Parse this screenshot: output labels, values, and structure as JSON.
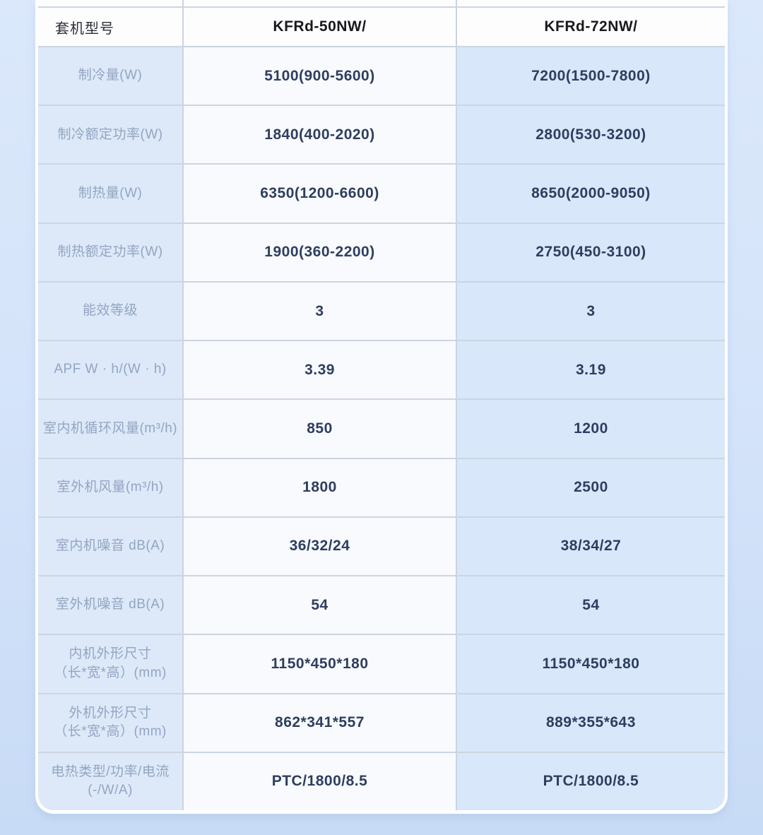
{
  "table": {
    "header": {
      "label": "套机型号",
      "models": [
        "KFRd-50NW/",
        "KFRd-72NW/"
      ]
    },
    "rows": [
      {
        "label": "制冷量(W)",
        "label2": "",
        "values": [
          "5100(900-5600)",
          "7200(1500-7800)"
        ]
      },
      {
        "label": "制冷额定功率(W)",
        "label2": "",
        "values": [
          "1840(400-2020)",
          "2800(530-3200)"
        ]
      },
      {
        "label": "制热量(W)",
        "label2": "",
        "values": [
          "6350(1200-6600)",
          "8650(2000-9050)"
        ]
      },
      {
        "label": "制热额定功率(W)",
        "label2": "",
        "values": [
          "1900(360-2200)",
          "2750(450-3100)"
        ]
      },
      {
        "label": "能效等级",
        "label2": "",
        "values": [
          "3",
          "3"
        ]
      },
      {
        "label": "APF W · h/(W · h)",
        "label2": "",
        "values": [
          "3.39",
          "3.19"
        ]
      },
      {
        "label": "室内机循环风量(m³/h)",
        "label2": "",
        "values": [
          "850",
          "1200"
        ]
      },
      {
        "label": "室外机风量(m³/h)",
        "label2": "",
        "values": [
          "1800",
          "2500"
        ]
      },
      {
        "label": "室内机噪音 dB(A)",
        "label2": "",
        "values": [
          "36/32/24",
          "38/34/27"
        ]
      },
      {
        "label": "室外机噪音 dB(A)",
        "label2": "",
        "values": [
          "54",
          "54"
        ]
      },
      {
        "label": "内机外形尺寸",
        "label2": "（长*宽*高）(mm)",
        "values": [
          "1150*450*180",
          "1150*450*180"
        ]
      },
      {
        "label": "外机外形尺寸",
        "label2": "（长*宽*高）(mm)",
        "values": [
          "862*341*557",
          "889*355*643"
        ]
      },
      {
        "label": "电热类型/功率/电流",
        "label2": "(-/W/A)",
        "values": [
          "PTC/1800/8.5",
          "PTC/1800/8.5"
        ]
      }
    ],
    "colors": {
      "page_bg_top": "#dbe8fb",
      "page_bg_bottom": "#c8dbf6",
      "card_bg": "#ffffff",
      "label_col_bg": "#dde9f9",
      "value_col1_bg": "#f8fafe",
      "value_col2_bg": "#d9e7fa",
      "header_bg": "#fdfdfe",
      "grid_line": "#ccd5e1",
      "label_text": "#93a5c2",
      "value_text": "#2e3e5f",
      "header_text": "#2b2f36"
    }
  }
}
